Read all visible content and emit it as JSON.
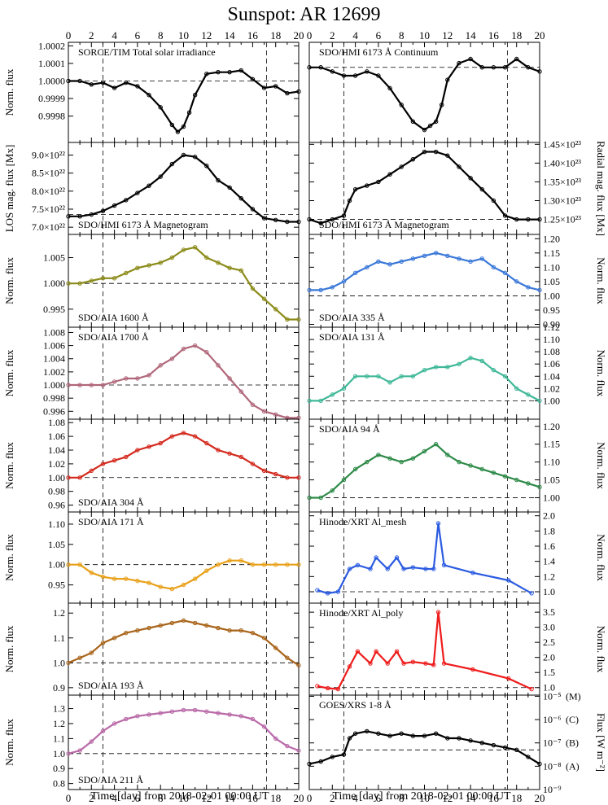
{
  "figure": {
    "title": "Sunspot: AR 12699",
    "xlabel": "Time [day] from 2018-02-01 00:00 UT",
    "x_range": [
      0,
      20
    ],
    "x_ticks": [
      "0",
      "2",
      "4",
      "6",
      "8",
      "10",
      "12",
      "14",
      "16",
      "18",
      "20"
    ],
    "vlines_x": [
      3.0,
      17.2
    ]
  },
  "chart_data": [
    {
      "type": "line",
      "label": "SORCE/TIM Total solar irradiance",
      "color": "#000000",
      "ylabel": "Norm. flux",
      "yaxis_side": "left",
      "ylim": [
        0.99965,
        1.00022
      ],
      "yticks": [
        "0.9998",
        "0.9999",
        "1.0000",
        "1.0001",
        "1.0002"
      ],
      "ytick_values": [
        0.9998,
        0.9999,
        1.0,
        1.0001,
        1.0002
      ],
      "hline": 1.0,
      "x": [
        0,
        1,
        2,
        3,
        4,
        5,
        6,
        7,
        8,
        9,
        9.5,
        10,
        10.5,
        11,
        12,
        13,
        14,
        15,
        16,
        17,
        18,
        19,
        20
      ],
      "values": [
        1.0,
        1.0,
        0.99998,
        0.99999,
        0.99996,
        0.99999,
        0.99997,
        0.99992,
        0.99985,
        0.99975,
        0.99971,
        0.99974,
        0.99982,
        0.99992,
        1.00004,
        1.00005,
        1.00005,
        1.00006,
        1.00001,
        0.99996,
        0.99997,
        0.99993,
        0.99994
      ]
    },
    {
      "type": "line",
      "label": "SDO/HMI 6173 Å Continuum",
      "color": "#000000",
      "ylabel": "",
      "yaxis_side": "right",
      "ylim": [
        0.91,
        1.03
      ],
      "yticks": [],
      "ytick_values": [],
      "hline": 1.0,
      "x": [
        0,
        1,
        2,
        3,
        4,
        5,
        6,
        7,
        8,
        9,
        10,
        10.5,
        11,
        11.5,
        12,
        13,
        14,
        15,
        16,
        17,
        18,
        19,
        20
      ],
      "values": [
        1.0,
        1.0,
        0.995,
        0.99,
        0.99,
        0.995,
        0.99,
        0.975,
        0.955,
        0.935,
        0.925,
        0.93,
        0.935,
        0.955,
        0.985,
        1.005,
        1.01,
        1.0,
        1.0,
        1.0,
        1.01,
        1.0,
        0.995
      ]
    },
    {
      "type": "line",
      "label": "SDO/HMI 6173 Å Magnetogram",
      "color": "#000000",
      "ylabel": "LOS mag. flux [Mx]",
      "yaxis_side": "left",
      "ylim": [
        6.8e+22,
        9.35e+22
      ],
      "yticks": [
        "7.0×10²²",
        "7.5×10²²",
        "8.0×10²²",
        "8.5×10²²",
        "9.0×10²²"
      ],
      "ytick_values": [
        7e+22,
        7.5e+22,
        8e+22,
        8.5e+22,
        9e+22
      ],
      "hline": 7.35e+22,
      "x": [
        0,
        1,
        2,
        3,
        4,
        5,
        6,
        7,
        8,
        9,
        10,
        11,
        12,
        13,
        14,
        15,
        16,
        17,
        18,
        19,
        20
      ],
      "values": [
        7.3e+22,
        7.3e+22,
        7.35e+22,
        7.45e+22,
        7.6e+22,
        7.75e+22,
        7.95e+22,
        8.15e+22,
        8.4e+22,
        8.75e+22,
        9e+22,
        8.95e+22,
        8.7e+22,
        8.3e+22,
        8.1e+22,
        7.8e+22,
        7.5e+22,
        7.25e+22,
        7.2e+22,
        7.15e+22,
        7.15e+22
      ]
    },
    {
      "type": "line",
      "label": "SDO/HMI 6173 Å Magnetogram",
      "color": "#000000",
      "ylabel": "Radial mag. flux [Mx]",
      "yaxis_side": "right",
      "ylim": [
        1.21e+23,
        1.455e+23
      ],
      "yticks": [
        "1.25×10²³",
        "1.30×10²³",
        "1.35×10²³",
        "1.40×10²³",
        "1.45×10²³"
      ],
      "ytick_values": [
        1.25e+23,
        1.3e+23,
        1.35e+23,
        1.4e+23,
        1.45e+23
      ],
      "hline": 1.25e+23,
      "x": [
        0,
        1,
        2,
        3,
        3.5,
        4,
        5,
        6,
        7,
        8,
        9,
        10,
        11,
        12,
        13,
        14,
        15,
        16,
        17,
        18,
        19,
        20
      ],
      "values": [
        1.25e+23,
        1.24e+23,
        1.25e+23,
        1.26e+23,
        1.3e+23,
        1.33e+23,
        1.34e+23,
        1.35e+23,
        1.37e+23,
        1.39e+23,
        1.41e+23,
        1.43e+23,
        1.43e+23,
        1.42e+23,
        1.39e+23,
        1.36e+23,
        1.33e+23,
        1.3e+23,
        1.26e+23,
        1.25e+23,
        1.25e+23,
        1.25e+23
      ]
    },
    {
      "type": "line",
      "label": "SDO/AIA 1600 Å",
      "color": "#8b8b1a",
      "ylabel": "Norm. flux",
      "yaxis_side": "left",
      "ylim": [
        0.9915,
        1.0095
      ],
      "yticks": [
        "0.995",
        "1.000",
        "1.005"
      ],
      "ytick_values": [
        0.995,
        1.0,
        1.005
      ],
      "hline": 1.0,
      "x": [
        0,
        1,
        2,
        3,
        4,
        5,
        6,
        7,
        8,
        9,
        10,
        11,
        12,
        13,
        14,
        15,
        16,
        17,
        18,
        19,
        20
      ],
      "values": [
        1.0,
        1.0,
        1.0005,
        1.001,
        1.001,
        1.002,
        1.003,
        1.0035,
        1.004,
        1.005,
        1.0065,
        1.007,
        1.005,
        1.004,
        1.003,
        1.0025,
        0.999,
        0.997,
        0.995,
        0.993,
        0.993
      ]
    },
    {
      "type": "line",
      "label": "SDO/AIA 335 Å",
      "color": "#3a78d8",
      "ylabel": "Norm. flux",
      "yaxis_side": "right",
      "ylim": [
        0.89,
        1.215
      ],
      "yticks": [
        "0.90",
        "0.95",
        "1.00",
        "1.05",
        "1.10",
        "1.15",
        "1.20"
      ],
      "ytick_values": [
        0.9,
        0.95,
        1.0,
        1.05,
        1.1,
        1.15,
        1.2
      ],
      "hline": 1.0,
      "x": [
        0,
        1,
        2,
        3,
        4,
        5,
        6,
        7,
        8,
        9,
        10,
        11,
        12,
        13,
        14,
        15,
        16,
        17,
        18,
        19,
        20
      ],
      "values": [
        1.02,
        1.02,
        1.03,
        1.05,
        1.08,
        1.1,
        1.12,
        1.11,
        1.12,
        1.13,
        1.14,
        1.15,
        1.14,
        1.13,
        1.12,
        1.13,
        1.1,
        1.08,
        1.05,
        1.03,
        1.02
      ]
    },
    {
      "type": "line",
      "label": "SDO/AIA 1700 Å",
      "color": "#b0677a",
      "ylabel": "Norm. flux",
      "yaxis_side": "left",
      "ylim": [
        0.9948,
        1.0088
      ],
      "yticks": [
        "0.996",
        "0.998",
        "1.000",
        "1.002",
        "1.004",
        "1.006",
        "1.008"
      ],
      "ytick_values": [
        0.996,
        0.998,
        1.0,
        1.002,
        1.004,
        1.006,
        1.008
      ],
      "hline": 1.0,
      "x": [
        0,
        1,
        2,
        3,
        4,
        5,
        6,
        7,
        8,
        9,
        10,
        11,
        12,
        13,
        14,
        15,
        16,
        17,
        18,
        19,
        20
      ],
      "values": [
        1.0,
        1.0,
        1.0,
        1.0,
        1.0005,
        1.001,
        1.001,
        1.0015,
        1.003,
        1.004,
        1.0055,
        1.006,
        1.005,
        1.003,
        1.001,
        0.999,
        0.997,
        0.996,
        0.9955,
        0.995,
        0.995
      ]
    },
    {
      "type": "line",
      "label": "SDO/AIA 131 Å",
      "color": "#3fb898",
      "ylabel": "Norm. flux",
      "yaxis_side": "right",
      "ylim": [
        0.97,
        1.12
      ],
      "yticks": [
        "1.00",
        "1.02",
        "1.04",
        "1.06",
        "1.08",
        "1.10",
        "1.12"
      ],
      "ytick_values": [
        1.0,
        1.02,
        1.04,
        1.06,
        1.08,
        1.1,
        1.12
      ],
      "hline": 1.0,
      "x": [
        0,
        1,
        2,
        3,
        4,
        5,
        6,
        7,
        8,
        9,
        10,
        11,
        12,
        13,
        14,
        15,
        16,
        17,
        18,
        19,
        20
      ],
      "values": [
        1.0,
        1.0,
        1.01,
        1.02,
        1.04,
        1.04,
        1.04,
        1.03,
        1.04,
        1.04,
        1.05,
        1.055,
        1.055,
        1.06,
        1.07,
        1.065,
        1.05,
        1.04,
        1.02,
        1.01,
        1.0
      ]
    },
    {
      "type": "line",
      "label": "SDO/AIA 304 Å",
      "color": "#d42a1e",
      "ylabel": "Norm. flux",
      "yaxis_side": "left",
      "ylim": [
        0.95,
        1.085
      ],
      "yticks": [
        "0.96",
        "0.98",
        "1.00",
        "1.02",
        "1.04",
        "1.06",
        "1.08"
      ],
      "ytick_values": [
        0.96,
        0.98,
        1.0,
        1.02,
        1.04,
        1.06,
        1.08
      ],
      "hline": 1.0,
      "x": [
        0,
        1,
        2,
        3,
        4,
        5,
        6,
        7,
        8,
        9,
        10,
        11,
        12,
        13,
        14,
        15,
        16,
        17,
        18,
        19,
        20
      ],
      "values": [
        1.0,
        1.0,
        1.01,
        1.02,
        1.025,
        1.03,
        1.04,
        1.045,
        1.05,
        1.06,
        1.065,
        1.06,
        1.05,
        1.04,
        1.035,
        1.03,
        1.02,
        1.01,
        1.005,
        1.0,
        1.0
      ]
    },
    {
      "type": "line",
      "label": "SDO/AIA 94 Å",
      "color": "#2e8a48",
      "ylabel": "Norm. flux",
      "yaxis_side": "right",
      "ylim": [
        0.96,
        1.22
      ],
      "yticks": [
        "1.00",
        "1.05",
        "1.10",
        "1.15",
        "1.20"
      ],
      "ytick_values": [
        1.0,
        1.05,
        1.1,
        1.15,
        1.2
      ],
      "hline": 1.0,
      "x": [
        0,
        1,
        2,
        3,
        4,
        5,
        6,
        7,
        8,
        9,
        10,
        11,
        12,
        13,
        14,
        15,
        16,
        17,
        18,
        19,
        20
      ],
      "values": [
        1.0,
        1.0,
        1.02,
        1.05,
        1.08,
        1.1,
        1.12,
        1.11,
        1.1,
        1.11,
        1.13,
        1.15,
        1.12,
        1.1,
        1.09,
        1.08,
        1.07,
        1.06,
        1.05,
        1.04,
        1.03
      ]
    },
    {
      "type": "line",
      "label": "SDO/AIA 171 Å",
      "color": "#e8a018",
      "ylabel": "Norm. flux",
      "yaxis_side": "left",
      "ylim": [
        0.905,
        1.13
      ],
      "yticks": [
        "0.95",
        "1.00",
        "1.05",
        "1.10"
      ],
      "ytick_values": [
        0.95,
        1.0,
        1.05,
        1.1
      ],
      "hline": 1.0,
      "x": [
        0,
        1,
        2,
        3,
        4,
        5,
        6,
        7,
        8,
        9,
        10,
        11,
        12,
        13,
        14,
        15,
        16,
        17,
        18,
        19,
        20
      ],
      "values": [
        1.0,
        1.0,
        0.98,
        0.97,
        0.965,
        0.965,
        0.96,
        0.955,
        0.945,
        0.94,
        0.95,
        0.965,
        0.985,
        1.0,
        1.01,
        1.01,
        1.0,
        1.0,
        1.0,
        1.0,
        1.0
      ]
    },
    {
      "type": "line",
      "label": "Hinode/XRT Al_mesh",
      "color": "#2b5be0",
      "ylabel": "Norm. flux",
      "yaxis_side": "right",
      "ylim": [
        0.85,
        2.05
      ],
      "yticks": [
        "1.0",
        "1.2",
        "1.4",
        "1.6",
        "1.8",
        "2.0"
      ],
      "ytick_values": [
        1.0,
        1.2,
        1.4,
        1.6,
        1.8,
        2.0
      ],
      "hline": 1.0,
      "x": [
        0.7,
        1.6,
        2.5,
        3.5,
        4.2,
        5.3,
        5.8,
        6.8,
        7.6,
        8.2,
        9.0,
        10.1,
        10.8,
        11.2,
        11.7,
        14.2,
        17.3,
        19.3
      ],
      "values": [
        1.02,
        0.98,
        1.0,
        1.3,
        1.35,
        1.3,
        1.45,
        1.3,
        1.45,
        1.3,
        1.32,
        1.3,
        1.3,
        1.9,
        1.35,
        1.25,
        1.15,
        0.98
      ]
    },
    {
      "type": "line",
      "label": "SDO/AIA 193 Å",
      "color": "#a8641a",
      "ylabel": "Norm. flux",
      "yaxis_side": "left",
      "ylim": [
        0.87,
        1.24
      ],
      "yticks": [
        "0.9",
        "1.0",
        "1.1",
        "1.2"
      ],
      "ytick_values": [
        0.9,
        1.0,
        1.1,
        1.2
      ],
      "hline": 1.0,
      "x": [
        0,
        1,
        2,
        3,
        4,
        5,
        6,
        7,
        8,
        9,
        10,
        11,
        12,
        13,
        14,
        15,
        16,
        17,
        18,
        19,
        20
      ],
      "values": [
        1.0,
        1.02,
        1.04,
        1.08,
        1.1,
        1.12,
        1.13,
        1.14,
        1.15,
        1.16,
        1.17,
        1.16,
        1.15,
        1.14,
        1.13,
        1.13,
        1.12,
        1.1,
        1.06,
        1.02,
        0.99
      ]
    },
    {
      "type": "line",
      "label": "Hinode/XRT Al_poly",
      "color": "#ee1c1c",
      "ylabel": "Norm. flux",
      "yaxis_side": "right",
      "ylim": [
        0.75,
        3.8
      ],
      "yticks": [
        "1.0",
        "1.5",
        "2.0",
        "2.5",
        "3.0",
        "3.5"
      ],
      "ytick_values": [
        1.0,
        1.5,
        2.0,
        2.5,
        3.0,
        3.5
      ],
      "hline": 1.0,
      "x": [
        0.7,
        1.6,
        2.5,
        3.5,
        4.2,
        5.3,
        5.8,
        6.8,
        7.6,
        8.2,
        9.0,
        10.1,
        10.8,
        11.2,
        11.7,
        14.2,
        17.3,
        19.3
      ],
      "values": [
        1.05,
        0.98,
        0.95,
        1.7,
        2.2,
        1.8,
        2.2,
        1.8,
        2.2,
        1.8,
        1.85,
        1.8,
        1.75,
        3.5,
        1.8,
        1.6,
        1.3,
        0.95
      ]
    },
    {
      "type": "line",
      "label": "SDO/AIA 211 Å",
      "color": "#b96aa8",
      "ylabel": "Norm. flux",
      "yaxis_side": "left",
      "ylim": [
        0.76,
        1.39
      ],
      "yticks": [
        "0.8",
        "0.9",
        "1.0",
        "1.1",
        "1.2",
        "1.3"
      ],
      "ytick_values": [
        0.8,
        0.9,
        1.0,
        1.1,
        1.2,
        1.3
      ],
      "hline": 1.0,
      "x": [
        0,
        1,
        2,
        3,
        4,
        5,
        6,
        7,
        8,
        9,
        10,
        11,
        12,
        13,
        14,
        15,
        16,
        17,
        18,
        19,
        20
      ],
      "values": [
        1.0,
        1.02,
        1.08,
        1.15,
        1.2,
        1.23,
        1.25,
        1.26,
        1.27,
        1.28,
        1.29,
        1.29,
        1.28,
        1.27,
        1.26,
        1.25,
        1.23,
        1.18,
        1.1,
        1.05,
        1.02
      ]
    },
    {
      "type": "line",
      "label": "GOES/XRS 1-8 Å",
      "color": "#000000",
      "ylabel": "Flux [W m⁻²]",
      "yaxis_side": "right",
      "ylog": true,
      "ylim": [
        -9.0,
        -4.95
      ],
      "yticks": [
        "10⁻⁵",
        "10⁻⁶",
        "10⁻⁷",
        "10⁻⁸",
        "10⁻⁹"
      ],
      "ytick_values": [
        -5,
        -6,
        -7,
        -8,
        -9
      ],
      "class_labels": [
        "(M)",
        "(C)",
        "(B)",
        "(A)"
      ],
      "class_values": [
        -5,
        -6,
        -7,
        -8
      ],
      "hline": -7.3,
      "x": [
        0,
        1,
        2,
        3,
        3.5,
        4,
        5,
        6,
        7,
        8,
        9,
        10,
        11,
        12,
        13,
        14,
        15,
        16,
        17,
        18,
        19,
        20
      ],
      "values": [
        -7.9,
        -7.8,
        -7.6,
        -7.5,
        -6.8,
        -6.6,
        -6.5,
        -6.6,
        -6.7,
        -6.6,
        -6.7,
        -6.7,
        -6.6,
        -6.8,
        -6.8,
        -6.9,
        -7.0,
        -7.1,
        -7.2,
        -7.3,
        -7.6,
        -7.9
      ]
    }
  ]
}
